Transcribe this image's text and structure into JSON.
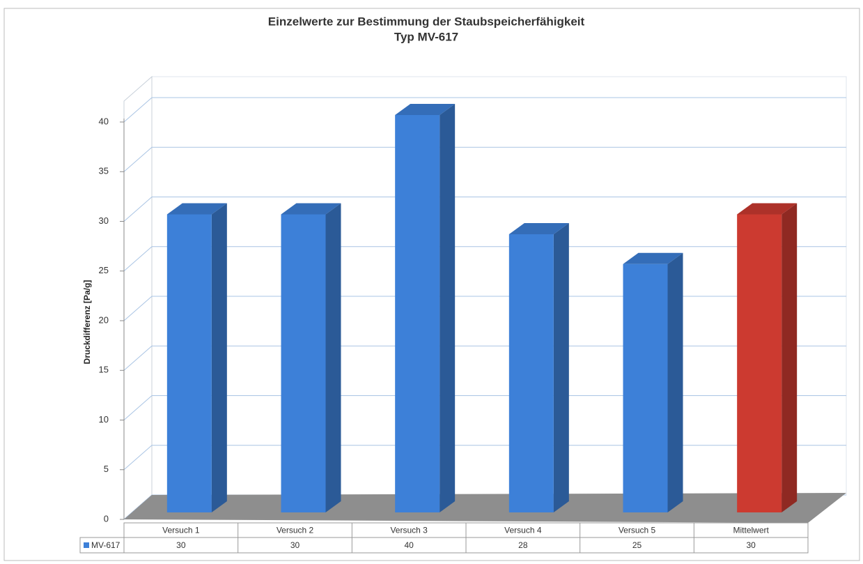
{
  "chart_data": {
    "type": "bar3d",
    "title": [
      "Einzelwerte zur Bestimmung der Staubspeicherfähigkeit",
      "Typ MV-617"
    ],
    "ylabel": "Druckdifferenz [Pa/g]",
    "categories": [
      "Versuch 1",
      "Versuch 2",
      "Versuch 3",
      "Versuch 4",
      "Versuch 5",
      "Mittelwert"
    ],
    "series": [
      {
        "name": "MV-617",
        "color": "#3d80d8",
        "values": [
          30,
          30,
          40,
          28,
          25,
          30
        ]
      }
    ],
    "point_colors": [
      "#3d80d8",
      "#3d80d8",
      "#3d80d8",
      "#3d80d8",
      "#3d80d8",
      "#cc3a30"
    ],
    "ylim": [
      0,
      40
    ],
    "yticks": [
      0,
      5,
      10,
      15,
      20,
      25,
      30,
      35,
      40
    ],
    "grid": true,
    "data_table": true
  }
}
